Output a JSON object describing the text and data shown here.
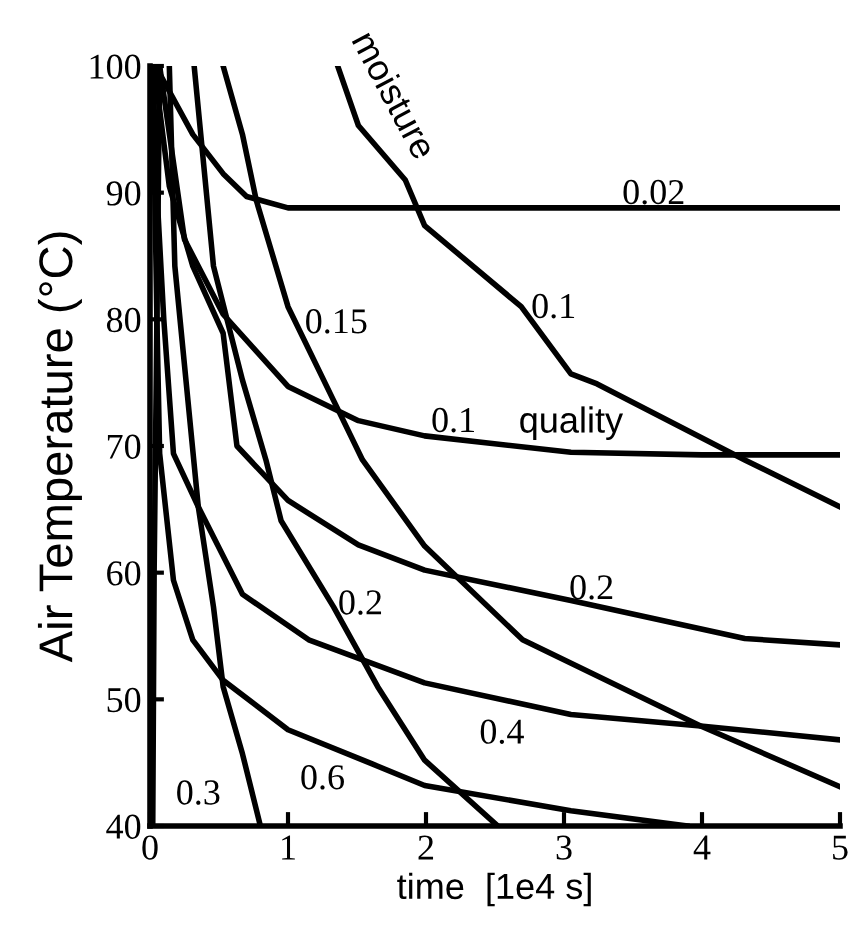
{
  "chart_data": {
    "type": "line",
    "xlabel": "time  [1e4 s]",
    "ylabel": "Air Temperature (°C)",
    "xlim": [
      0,
      5
    ],
    "ylim": [
      40,
      100
    ],
    "xticks": [
      0,
      1,
      2,
      3,
      4,
      5
    ],
    "yticks": [
      40,
      50,
      60,
      70,
      80,
      90,
      100
    ],
    "grid": false,
    "marker": "none",
    "line_style": "solid",
    "series": [
      {
        "name": "0.02",
        "color": "#000000",
        "x": [
          0.04,
          0.31,
          0.53,
          0.7,
          1.0,
          2.0,
          3.0,
          4.0,
          5.0
        ],
        "values": [
          100,
          94.6,
          91.5,
          89.7,
          88.8,
          88.8,
          88.8,
          88.8,
          88.8
        ]
      },
      {
        "name": "0.1",
        "color": "#000000",
        "x": [
          0.07,
          0.25,
          0.53,
          1.0,
          1.51,
          1.99,
          3.05,
          4.0,
          5.0
        ],
        "values": [
          100,
          86.3,
          80.4,
          74.7,
          72,
          70.8,
          69.5,
          69.3,
          69.3
        ]
      },
      {
        "name": "0.2",
        "color": "#000000",
        "x": [
          0.03,
          0.14,
          0.31,
          0.53,
          0.63,
          1.0,
          1.51,
          1.99,
          3.05,
          4.31,
          5.0
        ],
        "values": [
          100,
          90.5,
          84.2,
          78.9,
          70,
          65.7,
          62.2,
          60.2,
          57.8,
          54.8,
          54.3
        ]
      },
      {
        "name": "0.4",
        "color": "#000000",
        "x": [
          0.02,
          0.05,
          0.1,
          0.17,
          0.35,
          0.67,
          1.15,
          1.99,
          3.05,
          3.99,
          5.0
        ],
        "values": [
          100,
          90,
          80,
          69.4,
          65.2,
          58.3,
          54.7,
          51.3,
          48.8,
          47.9,
          46.8
        ]
      },
      {
        "name": "0.6",
        "color": "#000000",
        "x": [
          0.02,
          0.05,
          0.07,
          0.17,
          0.31,
          0.53,
          1.0,
          1.61,
          1.99,
          3.05,
          3.89
        ],
        "values": [
          100,
          80,
          69.4,
          59.4,
          54.7,
          51.5,
          47.6,
          44.9,
          43.2,
          41.2,
          40
        ]
      },
      {
        "name": "0.1",
        "color": "#000000",
        "x": [
          1.36,
          1.51,
          1.85,
          1.99,
          2.69,
          3.05,
          3.24,
          4.31,
          5.0
        ],
        "values": [
          100,
          95.3,
          91,
          87.4,
          81,
          75.7,
          74.9,
          68.9,
          65.2
        ]
      },
      {
        "name": "0.15",
        "color": "#000000",
        "x": [
          0.53,
          0.67,
          0.77,
          1.0,
          1.33,
          1.54,
          1.99,
          2.7,
          3.99,
          5.0
        ],
        "values": [
          100,
          94.6,
          89.4,
          81,
          73.6,
          68.9,
          62.1,
          54.7,
          47.9,
          43.1
        ]
      },
      {
        "name": "0.2",
        "color": "#000000",
        "x": [
          0.32,
          0.46,
          0.67,
          0.84,
          0.95,
          1.33,
          1.65,
          1.99,
          2.52
        ],
        "values": [
          100,
          84.2,
          75.2,
          68.9,
          64.1,
          57.3,
          51,
          45.2,
          40
        ]
      },
      {
        "name": "0.3",
        "color": "#000000",
        "x": [
          0.14,
          0.18,
          0.35,
          0.46,
          0.53,
          0.67,
          0.8
        ],
        "values": [
          100,
          84.2,
          65.2,
          57.3,
          51,
          45.7,
          40
        ]
      },
      {
        "color": "#000000",
        "x": [
          0.07,
          0.05,
          0.03,
          0.02
        ],
        "values": [
          100,
          80,
          60,
          40
        ]
      }
    ],
    "annotations": [
      "quality",
      "moisture"
    ]
  }
}
